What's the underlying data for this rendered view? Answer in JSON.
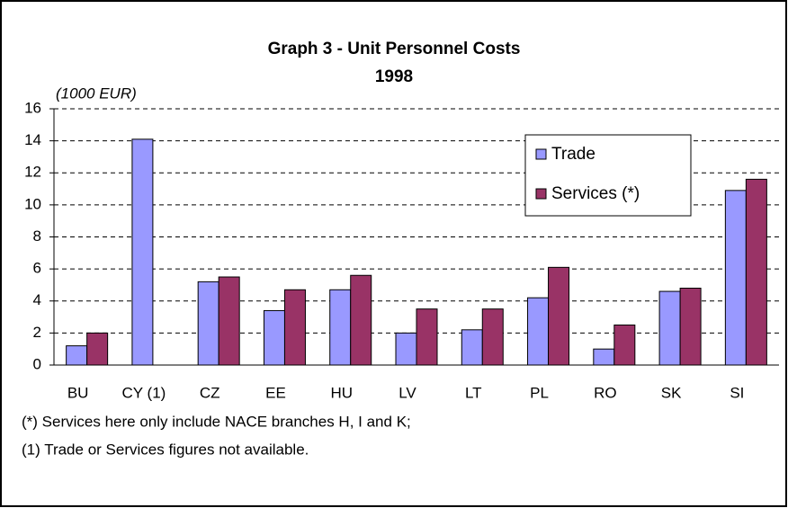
{
  "chart_data": {
    "type": "bar",
    "title": "Graph 3 - Unit Personnel Costs",
    "subtitle": "1998",
    "y_unit_label": "(1000 EUR)",
    "categories": [
      "BU",
      "CY (1)",
      "CZ",
      "EE",
      "HU",
      "LV",
      "LT",
      "PL",
      "RO",
      "SK",
      "SI"
    ],
    "series": [
      {
        "name": "Trade",
        "color": "#9999ff",
        "values": [
          1.2,
          14.1,
          5.2,
          3.4,
          4.7,
          2.0,
          2.2,
          4.2,
          1.0,
          4.6,
          10.9
        ]
      },
      {
        "name": "Services (*)",
        "color": "#993366",
        "values": [
          2.0,
          null,
          5.5,
          4.7,
          5.6,
          3.5,
          3.5,
          6.1,
          2.5,
          4.8,
          11.6
        ]
      }
    ],
    "ylim": [
      0,
      16
    ],
    "yticks": [
      0,
      2,
      4,
      6,
      8,
      10,
      12,
      14,
      16
    ],
    "grid": true,
    "legend": "upper right",
    "notes": [
      "(*)  Services here only include NACE branches H,  I and K;",
      "(1) Trade or Services figures not available."
    ]
  }
}
